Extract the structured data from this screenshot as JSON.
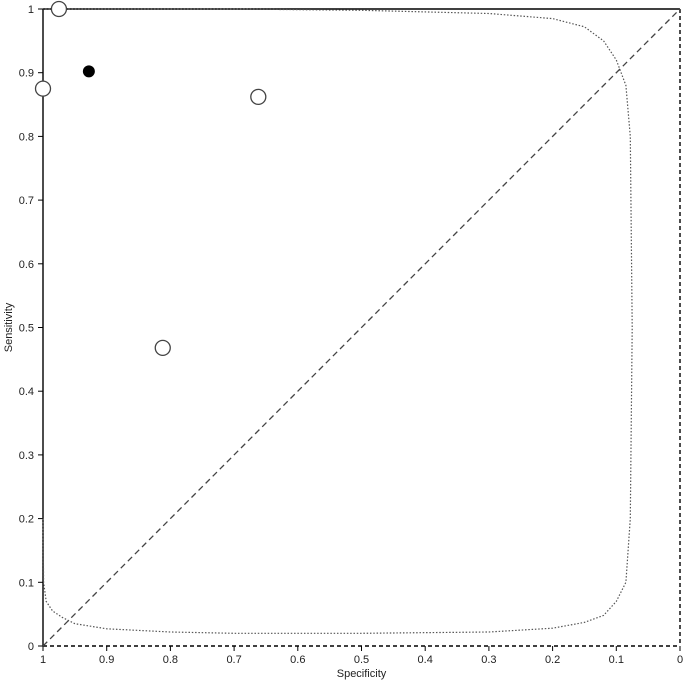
{
  "chart_data": {
    "type": "scatter",
    "title": "",
    "xlabel": "Specificity",
    "ylabel": "Sensitivity",
    "x_reversed": true,
    "xlim": [
      1,
      0
    ],
    "ylim": [
      0,
      1
    ],
    "x_ticks": [
      "1",
      "0.9",
      "0.8",
      "0.7",
      "0.6",
      "0.5",
      "0.4",
      "0.3",
      "0.2",
      "0.1",
      "0"
    ],
    "y_ticks": [
      "0",
      "0.1",
      "0.2",
      "0.3",
      "0.4",
      "0.5",
      "0.6",
      "0.7",
      "0.8",
      "0.9",
      "1"
    ],
    "grid": false,
    "legend": "none",
    "study_points": [
      {
        "specificity": 0.975,
        "sensitivity": 1.0
      },
      {
        "specificity": 1.0,
        "sensitivity": 0.875
      },
      {
        "specificity": 0.662,
        "sensitivity": 0.862
      },
      {
        "specificity": 0.812,
        "sensitivity": 0.468
      }
    ],
    "summary_point": {
      "specificity": 0.928,
      "sensitivity": 0.902
    },
    "reference_line": {
      "from": [
        1,
        0
      ],
      "to": [
        0,
        1
      ],
      "style": "dashed"
    },
    "confidence_region": {
      "style": "dotted",
      "points": [
        [
          1.0,
          0.2
        ],
        [
          0.999,
          0.1
        ],
        [
          0.995,
          0.07
        ],
        [
          0.985,
          0.055
        ],
        [
          0.97,
          0.045
        ],
        [
          0.95,
          0.035
        ],
        [
          0.9,
          0.027
        ],
        [
          0.8,
          0.022
        ],
        [
          0.7,
          0.02
        ],
        [
          0.5,
          0.02
        ],
        [
          0.3,
          0.022
        ],
        [
          0.2,
          0.028
        ],
        [
          0.15,
          0.037
        ],
        [
          0.12,
          0.048
        ],
        [
          0.1,
          0.07
        ],
        [
          0.085,
          0.1
        ],
        [
          0.078,
          0.2
        ],
        [
          0.075,
          0.5
        ],
        [
          0.078,
          0.8
        ],
        [
          0.085,
          0.88
        ],
        [
          0.1,
          0.92
        ],
        [
          0.12,
          0.95
        ],
        [
          0.15,
          0.972
        ],
        [
          0.2,
          0.985
        ],
        [
          0.3,
          0.993
        ],
        [
          0.5,
          0.998
        ],
        [
          0.7,
          1.0
        ],
        [
          0.9,
          1.0
        ],
        [
          1.0,
          1.0
        ]
      ]
    },
    "colors": {
      "frame": "#000000",
      "open_marker_stroke": "#444444",
      "summary_marker": "#000000",
      "region_stroke": "#555555",
      "diagonal": "#444444"
    }
  }
}
